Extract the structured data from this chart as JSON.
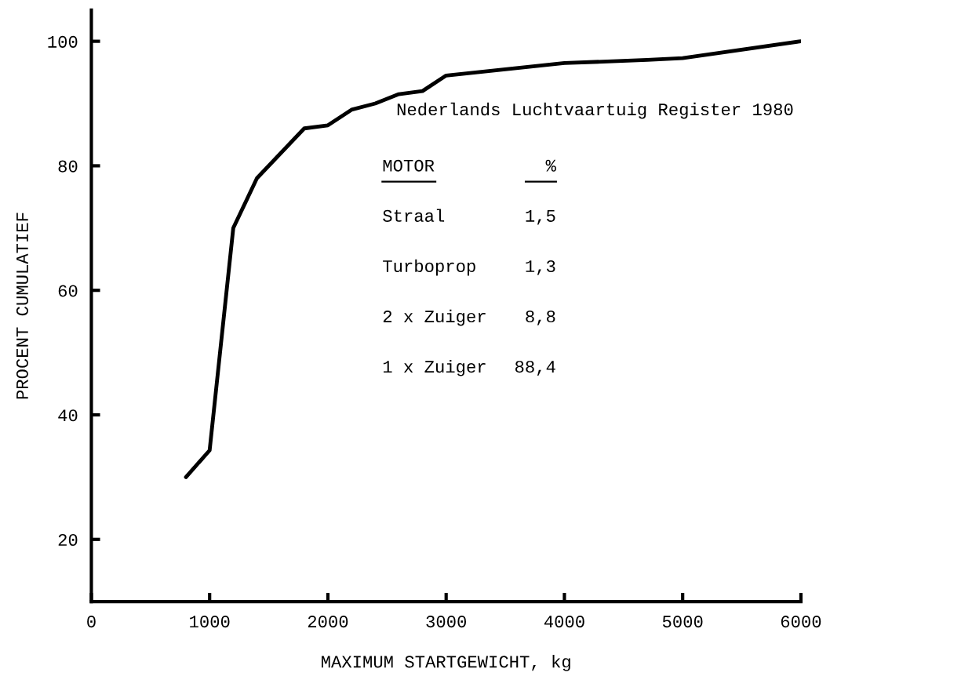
{
  "chart_data": {
    "type": "line",
    "xlabel": "MAXIMUM STARTGEWICHT, kg",
    "ylabel": "PROCENT CUMULATIEF",
    "x": [
      800,
      1000,
      1200,
      1400,
      1600,
      1800,
      2000,
      2200,
      2400,
      2600,
      2800,
      3000,
      3500,
      4000,
      4700,
      5000,
      6000
    ],
    "series": [
      {
        "color": "#000000",
        "values": [
          30,
          34.3,
          70,
          78,
          82,
          86,
          86.5,
          89,
          90,
          91.5,
          92,
          94.5,
          95.5,
          96.5,
          97,
          97.3,
          100
        ]
      }
    ],
    "xlim": [
      0,
      6000
    ],
    "xticks": [
      0,
      1000,
      2000,
      3000,
      4000,
      5000,
      6000
    ],
    "ylim": [
      10,
      105
    ],
    "yticks": [
      20,
      40,
      60,
      80,
      100
    ],
    "grid": false,
    "legend": false,
    "marker": "none",
    "line_style": "solid",
    "annotations": [
      "Nederlands Luchtvaartuig Register 1980",
      "MOTOR",
      "%",
      "Straal",
      "1,5",
      "Turboprop",
      "1,3",
      "2 x Zuiger",
      "8,8",
      "1 x Zuiger",
      "88,4"
    ]
  }
}
